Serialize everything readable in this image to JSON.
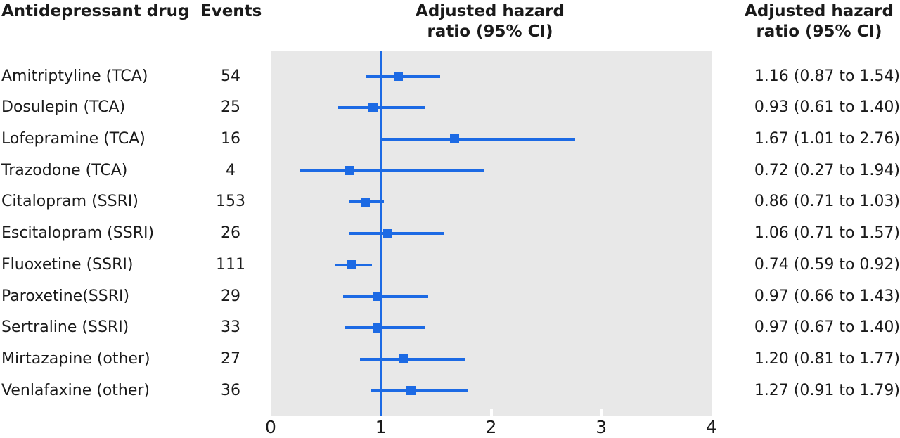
{
  "figure": {
    "headers": {
      "drug_column": "Antidepressant drug",
      "events_column": "Events",
      "plot_column_line1": "Adjusted hazard",
      "plot_column_line2": "ratio (95% CI)",
      "values_column_line1": "Adjusted hazard",
      "values_column_line2": "ratio (95% CI)"
    }
  },
  "chart_data": {
    "type": "scatter",
    "subtype": "forest-plot",
    "title": "Adjusted hazard ratio (95% CI)",
    "xlabel": "",
    "ylabel": "",
    "xlim": [
      0,
      4
    ],
    "x_ticks": [
      "0",
      "1",
      "2",
      "3",
      "4"
    ],
    "reference_line_x": 1,
    "grid": false,
    "rows": [
      {
        "drug": "Amitriptyline (TCA)",
        "events": "54",
        "hr": 1.16,
        "ci_low": 0.87,
        "ci_high": 1.54,
        "value_label": "1.16 (0.87 to 1.54)"
      },
      {
        "drug": "Dosulepin (TCA)",
        "events": "25",
        "hr": 0.93,
        "ci_low": 0.61,
        "ci_high": 1.4,
        "value_label": "0.93 (0.61 to 1.40)"
      },
      {
        "drug": "Lofepramine (TCA)",
        "events": "16",
        "hr": 1.67,
        "ci_low": 1.01,
        "ci_high": 2.76,
        "value_label": "1.67 (1.01 to 2.76)"
      },
      {
        "drug": "Trazodone (TCA)",
        "events": "4",
        "hr": 0.72,
        "ci_low": 0.27,
        "ci_high": 1.94,
        "value_label": "0.72 (0.27 to 1.94)"
      },
      {
        "drug": "Citalopram (SSRI)",
        "events": "153",
        "hr": 0.86,
        "ci_low": 0.71,
        "ci_high": 1.03,
        "value_label": "0.86 (0.71 to 1.03)"
      },
      {
        "drug": "Escitalopram (SSRI)",
        "events": "26",
        "hr": 1.06,
        "ci_low": 0.71,
        "ci_high": 1.57,
        "value_label": "1.06 (0.71 to 1.57)"
      },
      {
        "drug": "Fluoxetine (SSRI)",
        "events": "111",
        "hr": 0.74,
        "ci_low": 0.59,
        "ci_high": 0.92,
        "value_label": "0.74 (0.59 to 0.92)"
      },
      {
        "drug": "Paroxetine(SSRI)",
        "events": "29",
        "hr": 0.97,
        "ci_low": 0.66,
        "ci_high": 1.43,
        "value_label": "0.97 (0.66 to 1.43)"
      },
      {
        "drug": "Sertraline (SSRI)",
        "events": "33",
        "hr": 0.97,
        "ci_low": 0.67,
        "ci_high": 1.4,
        "value_label": "0.97 (0.67 to 1.40)"
      },
      {
        "drug": "Mirtazapine (other)",
        "events": "27",
        "hr": 1.2,
        "ci_low": 0.81,
        "ci_high": 1.77,
        "value_label": "1.20 (0.81 to 1.77)"
      },
      {
        "drug": "Venlafaxine (other)",
        "events": "36",
        "hr": 1.27,
        "ci_low": 0.91,
        "ci_high": 1.79,
        "value_label": "1.27 (0.91 to 1.79)"
      }
    ]
  },
  "colors": {
    "accent_blue": "#1c6ae4",
    "plot_background": "#e8e8e8",
    "text": "#1a1a1a",
    "tick_white": "#ffffff"
  }
}
